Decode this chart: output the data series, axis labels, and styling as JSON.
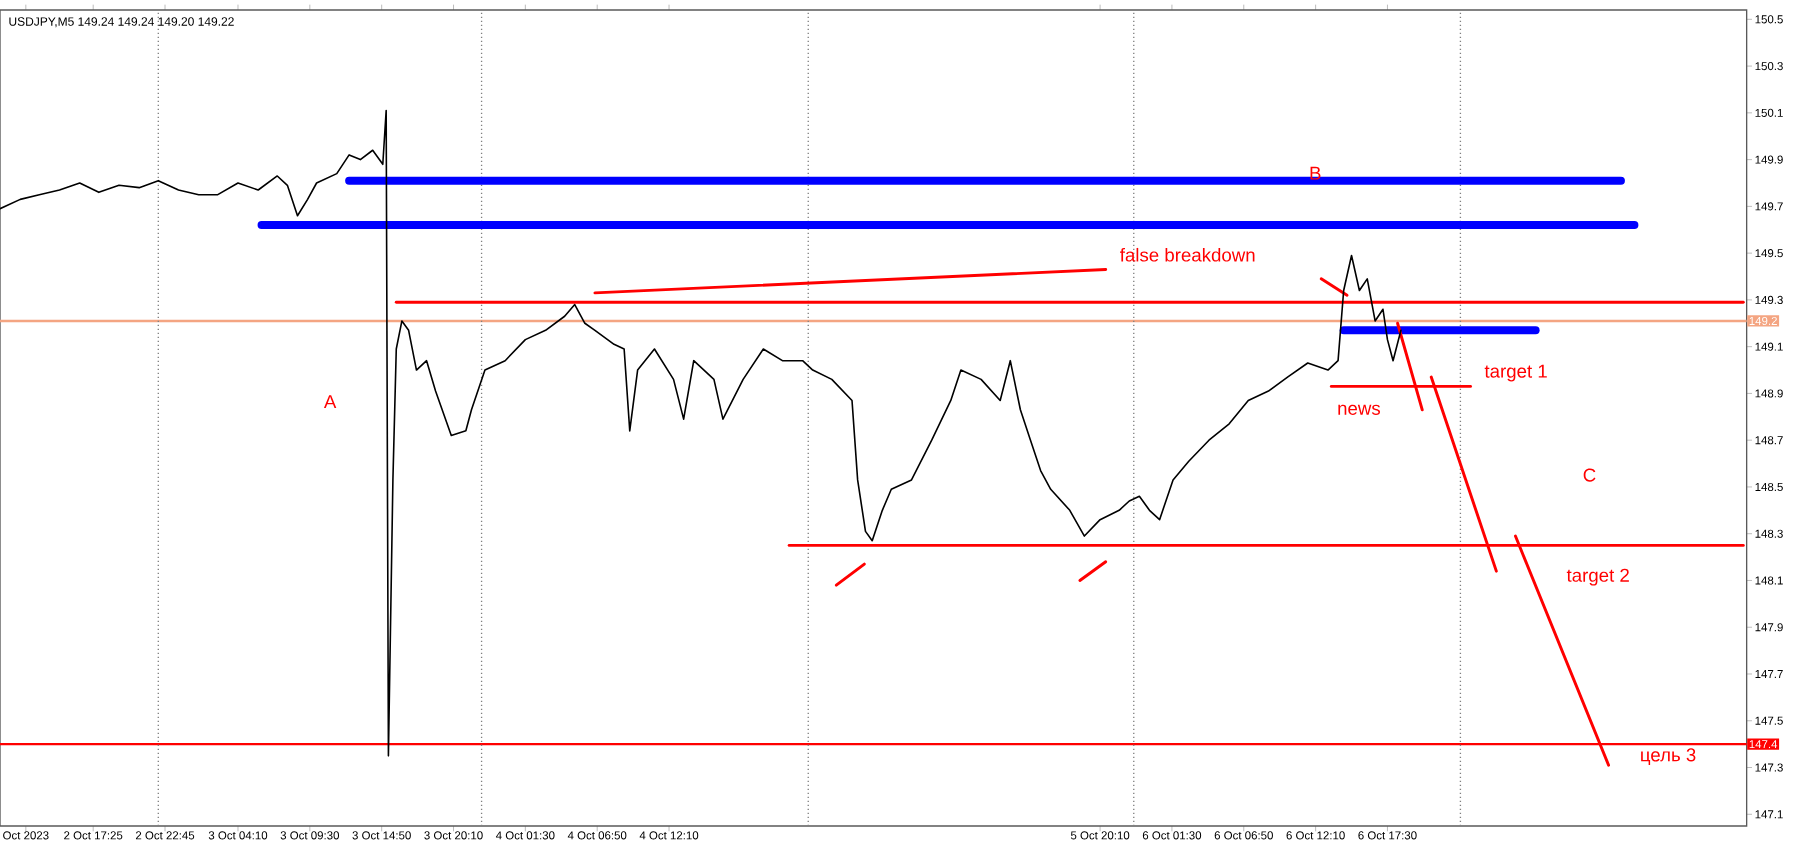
{
  "chart_data": {
    "type": "line",
    "title": "USDJPY,M5  149.24 149.24 149.20 149.22",
    "xlim": [
      "2023-10-02T10:30",
      "2023-10-07T20:10"
    ],
    "ylim": [
      147.05,
      150.54
    ],
    "xticks": [
      {
        "value": "2023-10-02T12:25",
        "label": "Oct 2023"
      },
      {
        "value": "2023-10-02T17:25",
        "label": "2 Oct 17:25"
      },
      {
        "value": "2023-10-02T22:45",
        "label": "2 Oct 22:45"
      },
      {
        "value": "2023-10-03T04:10",
        "label": "3 Oct 04:10"
      },
      {
        "value": "2023-10-03T09:30",
        "label": "3 Oct 09:30"
      },
      {
        "value": "2023-10-03T14:50",
        "label": "3 Oct 14:50"
      },
      {
        "value": "2023-10-03T20:10",
        "label": "3 Oct 20:10"
      },
      {
        "value": "2023-10-04T01:30",
        "label": "4 Oct 01:30"
      },
      {
        "value": "2023-10-04T06:50",
        "label": "4 Oct 06:50"
      },
      {
        "value": "2023-10-04T12:10",
        "label": "4 Oct 12:10"
      },
      {
        "value": "2023-10-05T20:10",
        "label": "5 Oct 20:10"
      },
      {
        "value": "2023-10-06T01:30",
        "label": "6 Oct 01:30"
      },
      {
        "value": "2023-10-06T06:50",
        "label": "6 Oct 06:50"
      },
      {
        "value": "2023-10-06T12:10",
        "label": "6 Oct 12:10"
      },
      {
        "value": "2023-10-06T17:30",
        "label": "6 Oct 17:30"
      }
    ],
    "yticks": [
      147.1,
      147.3,
      147.5,
      147.7,
      147.9,
      148.1,
      148.3,
      148.5,
      148.7,
      148.9,
      149.1,
      149.3,
      149.5,
      149.7,
      149.9,
      150.1,
      150.3,
      150.5
    ],
    "series": [
      {
        "color": "#0000ff",
        "x": [
          "2023-10-03T12:25",
          "2023-10-07T10:50"
        ],
        "values": [
          149.81,
          149.81
        ]
      },
      {
        "color": "#0000ff",
        "x": [
          "2023-10-03T05:55",
          "2023-10-07T11:50"
        ],
        "values": [
          149.62,
          149.62
        ]
      },
      {
        "color": "#0000ff",
        "x": [
          "2023-10-06T14:15",
          "2023-10-07T04:30"
        ],
        "values": [
          149.17,
          149.17
        ]
      },
      {
        "color": "#ff0000",
        "x": [
          "2023-10-03T15:55",
          "2023-10-07T19:55"
        ],
        "values": [
          149.29,
          149.29
        ]
      },
      {
        "color": "#ff0000",
        "x": [
          "2023-10-04T21:05",
          "2023-10-07T19:55"
        ],
        "values": [
          148.25,
          148.25
        ]
      },
      {
        "color": "#ff0000",
        "x": [
          "2023-10-04T06:40",
          "2023-10-05T20:35"
        ],
        "values": [
          149.33,
          149.43
        ]
      },
      {
        "color": "#ff0000",
        "x": [
          "2023-10-05T00:35",
          "2023-10-05T02:40"
        ],
        "values": [
          148.08,
          148.17
        ]
      },
      {
        "color": "#ff0000",
        "x": [
          "2023-10-05T18:40",
          "2023-10-05T20:35"
        ],
        "values": [
          148.1,
          148.18
        ]
      },
      {
        "color": "#ff0000",
        "x": [
          "2023-10-06T18:15",
          "2023-10-06T20:05"
        ],
        "values": [
          149.2,
          148.83
        ]
      },
      {
        "color": "#ff0000",
        "x": [
          "2023-10-06T13:20",
          "2023-10-06T23:40"
        ],
        "values": [
          148.93,
          148.93
        ]
      },
      {
        "color": "#ff0000",
        "x": [
          "2023-10-06T20:45",
          "2023-10-07T01:35"
        ],
        "values": [
          148.97,
          148.14
        ]
      },
      {
        "color": "#ff0000",
        "x": [
          "2023-10-07T03:00",
          "2023-10-07T09:55"
        ],
        "values": [
          148.29,
          147.31
        ]
      },
      {
        "color": "#ff0000",
        "x": [
          "2023-10-06T12:35",
          "2023-10-06T14:30"
        ],
        "values": [
          149.39,
          149.32
        ]
      },
      {
        "color": "#000000",
        "x": [
          "2023-10-02T10:30",
          "2023-10-02T12:00",
          "2023-10-02T13:25",
          "2023-10-02T14:55",
          "2023-10-02T16:25",
          "2023-10-02T17:50",
          "2023-10-02T19:20",
          "2023-10-02T20:50",
          "2023-10-02T22:15",
          "2023-10-02T23:45",
          "2023-10-03T01:15",
          "2023-10-03T02:40",
          "2023-10-03T04:10",
          "2023-10-03T05:40",
          "2023-10-03T07:05",
          "2023-10-03T07:50",
          "2023-10-03T08:35",
          "2023-10-03T09:20",
          "2023-10-03T10:00",
          "2023-10-03T11:30",
          "2023-10-03T12:25",
          "2023-10-03T13:15",
          "2023-10-03T14:10",
          "2023-10-03T14:55",
          "2023-10-03T15:10",
          "2023-10-03T15:20",
          "2023-10-03T15:40",
          "2023-10-03T15:55",
          "2023-10-03T16:20",
          "2023-10-03T16:50",
          "2023-10-03T17:25",
          "2023-10-03T18:10",
          "2023-10-03T18:50",
          "2023-10-03T20:00",
          "2023-10-03T21:05",
          "2023-10-03T21:30",
          "2023-10-03T22:30",
          "2023-10-04T00:00",
          "2023-10-04T01:30",
          "2023-10-04T03:00",
          "2023-10-04T04:25",
          "2023-10-04T05:10",
          "2023-10-04T05:55",
          "2023-10-04T06:40",
          "2023-10-04T08:05",
          "2023-10-04T08:50",
          "2023-10-04T09:15",
          "2023-10-04T09:50",
          "2023-10-04T11:05",
          "2023-10-04T12:30",
          "2023-10-04T13:15",
          "2023-10-04T14:00",
          "2023-10-04T15:30",
          "2023-10-04T16:10",
          "2023-10-04T17:40",
          "2023-10-04T19:10",
          "2023-10-04T20:35",
          "2023-10-04T22:05",
          "2023-10-04T22:50",
          "2023-10-05T00:15",
          "2023-10-05T01:45",
          "2023-10-05T02:10",
          "2023-10-05T02:45",
          "2023-10-05T03:15",
          "2023-10-05T04:00",
          "2023-10-05T04:40",
          "2023-10-05T06:10",
          "2023-10-05T07:40",
          "2023-10-05T09:05",
          "2023-10-05T09:50",
          "2023-10-05T11:20",
          "2023-10-05T12:45",
          "2023-10-05T13:30",
          "2023-10-05T14:15",
          "2023-10-05T15:00",
          "2023-10-05T15:45",
          "2023-10-05T16:30",
          "2023-10-05T17:55",
          "2023-10-05T19:00",
          "2023-10-05T20:10",
          "2023-10-05T21:35",
          "2023-10-05T22:20",
          "2023-10-05T23:05",
          "2023-10-05T23:50",
          "2023-10-06T00:35",
          "2023-10-06T01:35",
          "2023-10-06T02:45",
          "2023-10-06T04:15",
          "2023-10-06T05:45",
          "2023-10-06T07:10",
          "2023-10-06T08:40",
          "2023-10-06T10:05",
          "2023-10-06T11:35",
          "2023-10-06T13:05",
          "2023-10-06T13:50",
          "2023-10-06T14:15",
          "2023-10-06T14:50",
          "2023-10-06T15:25",
          "2023-10-06T16:00",
          "2023-10-06T16:35",
          "2023-10-06T17:10",
          "2023-10-06T17:30",
          "2023-10-06T17:55",
          "2023-10-06T18:30"
        ],
        "values": [
          149.69,
          149.73,
          149.75,
          149.77,
          149.8,
          149.76,
          149.79,
          149.78,
          149.81,
          149.77,
          149.75,
          149.75,
          149.8,
          149.77,
          149.83,
          149.79,
          149.66,
          149.73,
          149.8,
          149.84,
          149.92,
          149.9,
          149.94,
          149.88,
          150.11,
          147.35,
          148.53,
          149.09,
          149.21,
          149.17,
          149.0,
          149.04,
          148.91,
          148.72,
          148.74,
          148.83,
          149.0,
          149.04,
          149.13,
          149.17,
          149.23,
          149.28,
          149.2,
          149.17,
          149.11,
          149.09,
          148.74,
          149.0,
          149.09,
          148.96,
          148.79,
          149.04,
          148.96,
          148.79,
          148.96,
          149.09,
          149.04,
          149.04,
          149.0,
          148.96,
          148.87,
          148.53,
          148.31,
          148.27,
          148.4,
          148.49,
          148.53,
          148.7,
          148.87,
          149.0,
          148.96,
          148.87,
          149.04,
          148.83,
          148.7,
          148.57,
          148.49,
          148.4,
          148.29,
          148.36,
          148.4,
          148.44,
          148.46,
          148.4,
          148.36,
          148.53,
          148.61,
          148.7,
          148.77,
          148.87,
          148.91,
          148.97,
          149.03,
          149.0,
          149.04,
          149.34,
          149.49,
          149.34,
          149.39,
          149.21,
          149.26,
          149.13,
          149.04,
          149.17
        ]
      }
    ],
    "ref_lines": [
      {
        "axis": "y",
        "value": 149.21,
        "label": "149.2",
        "color": "#f4a582"
      },
      {
        "axis": "y",
        "value": 147.4,
        "label": "147.4",
        "color": "#ff0000"
      },
      {
        "axis": "x",
        "value": "2023-10-02T22:15",
        "color": "#808080",
        "line_style": "dotted"
      },
      {
        "axis": "x",
        "value": "2023-10-03T22:15",
        "color": "#808080",
        "line_style": "dotted"
      },
      {
        "axis": "x",
        "value": "2023-10-04T22:30",
        "color": "#808080",
        "line_style": "dotted"
      },
      {
        "axis": "x",
        "value": "2023-10-05T22:40",
        "color": "#808080",
        "line_style": "dotted"
      },
      {
        "axis": "x",
        "value": "2023-10-06T22:55",
        "color": "#808080",
        "line_style": "dotted"
      }
    ],
    "annotations": [
      "A",
      "B",
      "C",
      "false breakdown",
      "news",
      "target 1",
      "target 2",
      "цель 3"
    ]
  }
}
